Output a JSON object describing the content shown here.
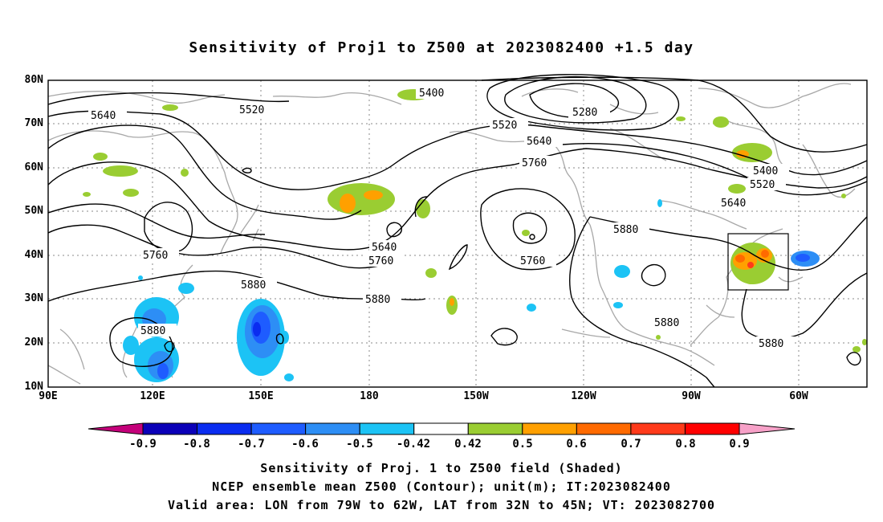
{
  "title": "Sensitivity of Proj1 to Z500 at 2023082400 +1.5 day",
  "lat_labels": [
    "80N",
    "70N",
    "60N",
    "50N",
    "40N",
    "30N",
    "20N",
    "10N"
  ],
  "lon_labels": [
    "90E",
    "120E",
    "150E",
    "180",
    "150W",
    "120W",
    "90W",
    "60W"
  ],
  "contour_labels": [
    "5280",
    "5400",
    "5400",
    "5520",
    "5520",
    "5520",
    "5640",
    "5640",
    "5640",
    "5640",
    "5760",
    "5760",
    "5760",
    "5760",
    "5880",
    "5880",
    "5880",
    "5880",
    "5880",
    "5880"
  ],
  "colorbar": {
    "labels": [
      "-0.9",
      "-0.8",
      "-0.7",
      "-0.6",
      "-0.5",
      "-0.42",
      "0.42",
      "0.5",
      "0.6",
      "0.7",
      "0.8",
      "0.9"
    ],
    "colors": [
      "#c4007a",
      "#0b00b8",
      "#0a2cf0",
      "#1e5cff",
      "#2d8ef5",
      "#1cc3f5",
      "#ffffff",
      "#9acd32",
      "#ffa000",
      "#ff6a00",
      "#ff3a1a",
      "#ff0000",
      "#f7a1c8"
    ]
  },
  "footer": [
    "Sensitivity of Proj. 1 to Z500 field (Shaded)",
    "NCEP ensemble mean Z500 (Contour); unit(m); IT:2023082400",
    "Valid area: LON from 79W to 62W, LAT from 32N to 45N; VT: 2023082700"
  ],
  "colors": {
    "contour": "#000000",
    "coast": "#a8a8a8",
    "grid": "#888888",
    "frame": "#000000"
  }
}
